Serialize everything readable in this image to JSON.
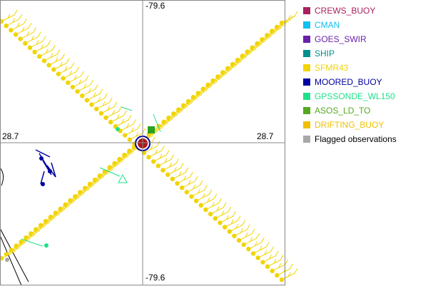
{
  "axis_labels": {
    "top": "-79.6",
    "left": "28.7",
    "right": "28.7",
    "bottom": "-79.6"
  },
  "legend": [
    {
      "label": "CREWS_BUOY",
      "color": "#a8205c",
      "text_color": "#a8205c"
    },
    {
      "label": "CMAN",
      "color": "#10c0f0",
      "text_color": "#10c0f0"
    },
    {
      "label": "GOES_SWIR",
      "color": "#6a22a8",
      "text_color": "#6a22a8"
    },
    {
      "label": "SHIP",
      "color": "#008f8f",
      "text_color": "#008f8f"
    },
    {
      "label": "SFMR43",
      "color": "#f2d400",
      "text_color": "#f2d400"
    },
    {
      "label": "MOORED_BUOY",
      "color": "#0000a0",
      "text_color": "#0000a0"
    },
    {
      "label": "GPSSONDE_WL150",
      "color": "#20e088",
      "text_color": "#20e088"
    },
    {
      "label": "ASOS_LD_TO",
      "color": "#55a820",
      "text_color": "#55a820"
    },
    {
      "label": "DRIFTING_BUOY",
      "color": "#f0c000",
      "text_color": "#f0c000"
    },
    {
      "label": "Flagged observations",
      "color": "#a8a8a8",
      "text_color": "#000000"
    }
  ]
}
